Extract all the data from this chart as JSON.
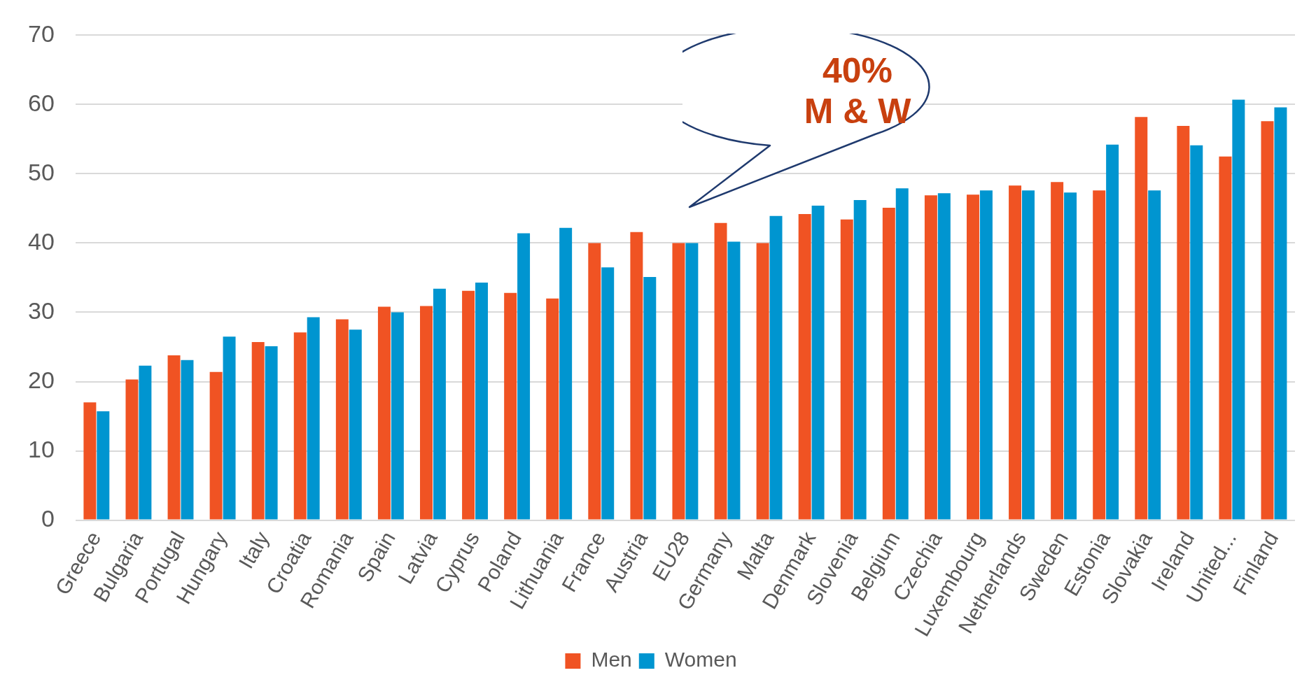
{
  "chart_data": {
    "type": "bar",
    "categories": [
      "Greece",
      "Bulgaria",
      "Portugal",
      "Hungary",
      "Italy",
      "Croatia",
      "Romania",
      "Spain",
      "Latvia",
      "Cyprus",
      "Poland",
      "Lithuania",
      "France",
      "Austria",
      "EU28",
      "Germany",
      "Malta",
      "Denmark",
      "Slovenia",
      "Belgium",
      "Czechia",
      "Luxembourg",
      "Netherlands",
      "Sweden",
      "Estonia",
      "Slovakia",
      "Ireland",
      "United...",
      "Finland"
    ],
    "series": [
      {
        "name": "Men",
        "color": "#f05323",
        "values": [
          17,
          20.3,
          23.8,
          21.4,
          25.7,
          27.1,
          29,
          30.8,
          30.9,
          33.1,
          32.8,
          32,
          40,
          41.6,
          40,
          42.9,
          40,
          44.2,
          43.4,
          45.1,
          46.9,
          47,
          48.3,
          48.8,
          47.6,
          58.2,
          56.9,
          52.5,
          57.6
        ]
      },
      {
        "name": "Women",
        "color": "#0095d0",
        "values": [
          15.7,
          22.3,
          23.1,
          26.5,
          25.1,
          29.3,
          27.5,
          30,
          33.4,
          34.3,
          41.4,
          42.2,
          36.5,
          35.1,
          40,
          40.2,
          43.9,
          45.4,
          46.2,
          47.9,
          47.2,
          47.6,
          47.6,
          47.3,
          54.2,
          47.6,
          54.1,
          60.7,
          59.6
        ]
      }
    ],
    "ylim": [
      0,
      70
    ],
    "yticks": [
      0,
      10,
      20,
      30,
      40,
      50,
      60,
      70
    ],
    "grid": "y",
    "legend": "bottom",
    "annotations": [
      "40%\nM & W"
    ]
  }
}
